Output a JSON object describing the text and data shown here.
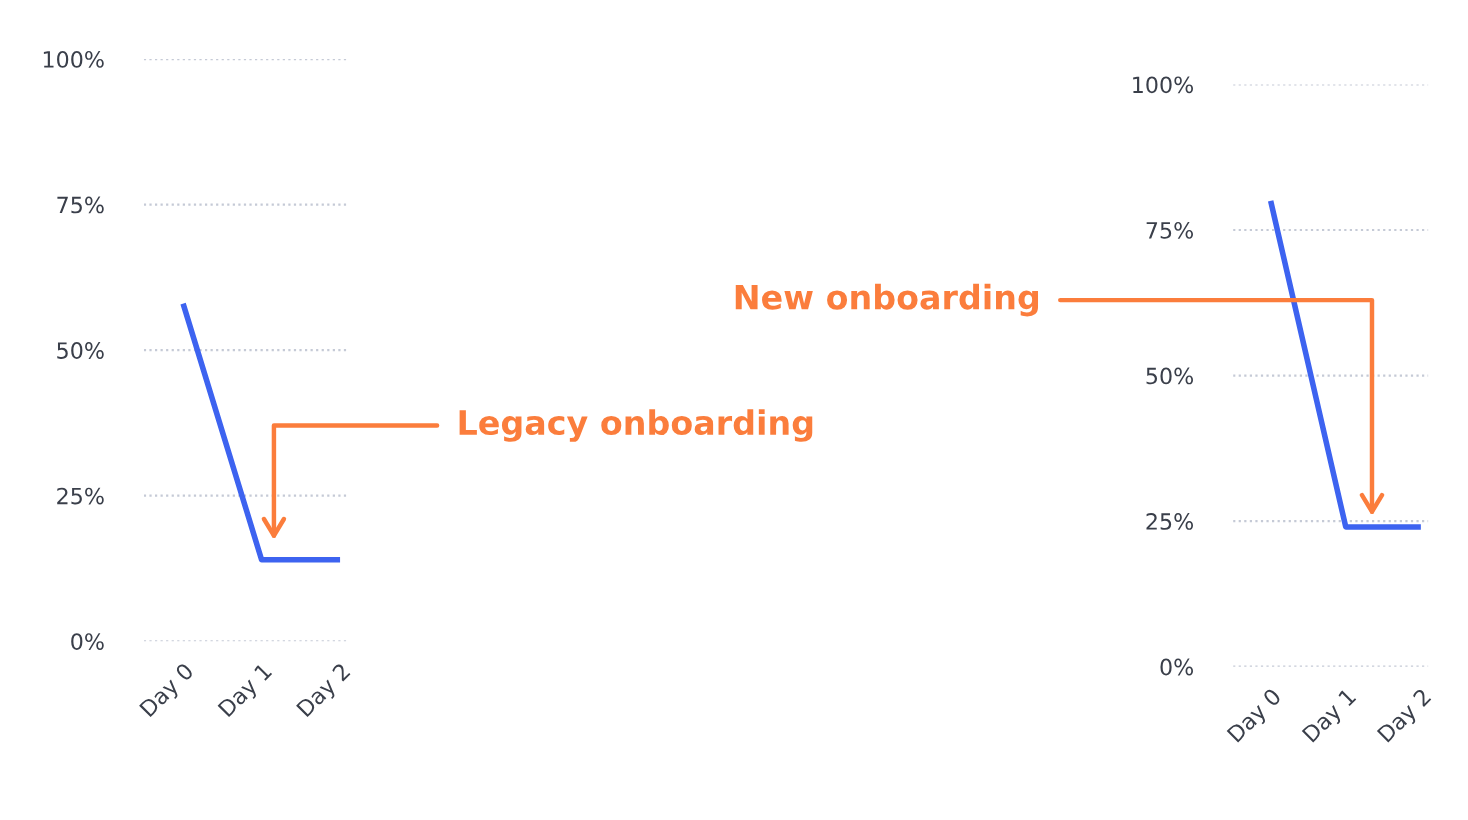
{
  "chart_data": [
    {
      "type": "line",
      "categories": [
        "Day 0",
        "Day 1",
        "Day 2"
      ],
      "series": [
        {
          "color": "#3d63f0",
          "values": [
            58,
            14,
            14
          ]
        }
      ],
      "ylim": [
        0,
        100
      ],
      "yticks": [
        {
          "value": 0,
          "label": "0%"
        },
        {
          "value": 25,
          "label": "25%"
        },
        {
          "value": 50,
          "label": "50%"
        },
        {
          "value": 75,
          "label": "75%"
        },
        {
          "value": 100,
          "label": "100%"
        }
      ],
      "grid": "y",
      "annotations": [
        "Legacy onboarding"
      ]
    },
    {
      "type": "line",
      "categories": [
        "Day 0",
        "Day 1",
        "Day 2"
      ],
      "series": [
        {
          "color": "#3d63f0",
          "values": [
            80,
            24,
            24
          ]
        }
      ],
      "ylim": [
        0,
        100
      ],
      "yticks": [
        {
          "value": 0,
          "label": "0%"
        },
        {
          "value": 25,
          "label": "25%"
        },
        {
          "value": 50,
          "label": "50%"
        },
        {
          "value": 75,
          "label": "75%"
        },
        {
          "value": 100,
          "label": "100%"
        }
      ],
      "grid": "y",
      "annotations": [
        "New onboarding"
      ]
    }
  ]
}
